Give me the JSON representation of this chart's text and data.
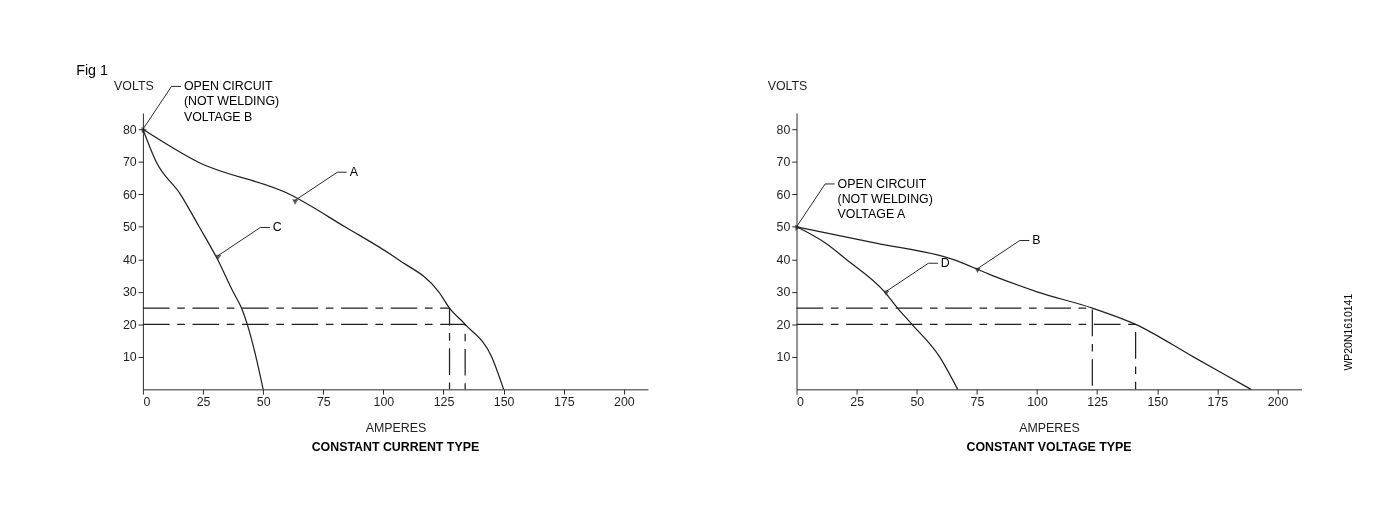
{
  "chart_data": [
    {
      "type": "line",
      "title": "CONSTANT CURRENT TYPE",
      "xlabel": "AMPERES",
      "ylabel": "VOLTS",
      "xlim": [
        0,
        210
      ],
      "ylim": [
        0,
        85
      ],
      "xticks": [
        0,
        25,
        50,
        75,
        100,
        125,
        150,
        175,
        200
      ],
      "yticks": [
        10,
        20,
        30,
        40,
        50,
        60,
        70,
        80
      ],
      "series": [
        {
          "color": "#231f20",
          "x": [
            0,
            22.7,
            61,
            84,
            106,
            123,
            127.5,
            134,
            145,
            150
          ],
          "values": [
            80,
            70,
            60,
            50,
            40,
            30,
            25,
            20,
            10,
            0
          ]
        },
        {
          "color": "#231f20",
          "x": [
            0,
            5.5,
            15.6,
            23.4,
            31,
            37.5,
            41,
            43.4,
            47,
            50
          ],
          "values": [
            80,
            70,
            60,
            50,
            40,
            30,
            25,
            20,
            10,
            0
          ]
        },
        {
          "color": "#231f20",
          "line_style": "dashed",
          "x": [
            0,
            127.5,
            127.5
          ],
          "values": [
            25,
            25,
            0
          ]
        },
        {
          "color": "#231f20",
          "line_style": "dashed",
          "x": [
            0,
            134,
            134
          ],
          "values": [
            20,
            20,
            0
          ]
        }
      ],
      "annotations": [
        "Fig 1",
        {
          "text": "OPEN CIRCUIT\n(NOT WELDING)\nVOLTAGE B",
          "x": 0,
          "y": 80
        },
        {
          "text": "A",
          "x": 63,
          "y": 58
        },
        {
          "text": "C",
          "x": 31,
          "y": 41
        }
      ]
    },
    {
      "type": "line",
      "title": "CONSTANT VOLTAGE TYPE",
      "xlabel": "AMPERES",
      "ylabel": "VOLTS",
      "xlim": [
        0,
        210
      ],
      "ylim": [
        0,
        85
      ],
      "xticks": [
        0,
        25,
        50,
        75,
        100,
        125,
        150,
        175,
        200
      ],
      "yticks": [
        10,
        20,
        30,
        40,
        50,
        60,
        70,
        80
      ],
      "series": [
        {
          "color": "#231f20",
          "x": [
            0,
            33,
            65,
            81.5,
            100,
            123,
            141,
            165,
            189
          ],
          "values": [
            50,
            45,
            40,
            35,
            30,
            25,
            20,
            10,
            0
          ]
        },
        {
          "color": "#231f20",
          "x": [
            0,
            12,
            20.6,
            36.6,
            42,
            48,
            59.5,
            67
          ],
          "values": [
            50,
            45,
            40,
            30,
            25,
            20,
            10,
            0
          ]
        },
        {
          "color": "#231f20",
          "line_style": "dashed",
          "x": [
            0,
            123,
            123
          ],
          "values": [
            25,
            25,
            0
          ]
        },
        {
          "color": "#231f20",
          "line_style": "dashed",
          "x": [
            0,
            141,
            141
          ],
          "values": [
            20,
            20,
            0
          ]
        }
      ],
      "annotations": [
        "WP20N1610141",
        {
          "text": "OPEN CIRCUIT\n(NOT WELDING)\nVOLTAGE A",
          "x": 0,
          "y": 50
        },
        {
          "text": "B",
          "x": 75,
          "y": 37
        },
        {
          "text": "D",
          "x": 37,
          "y": 30
        }
      ]
    }
  ]
}
